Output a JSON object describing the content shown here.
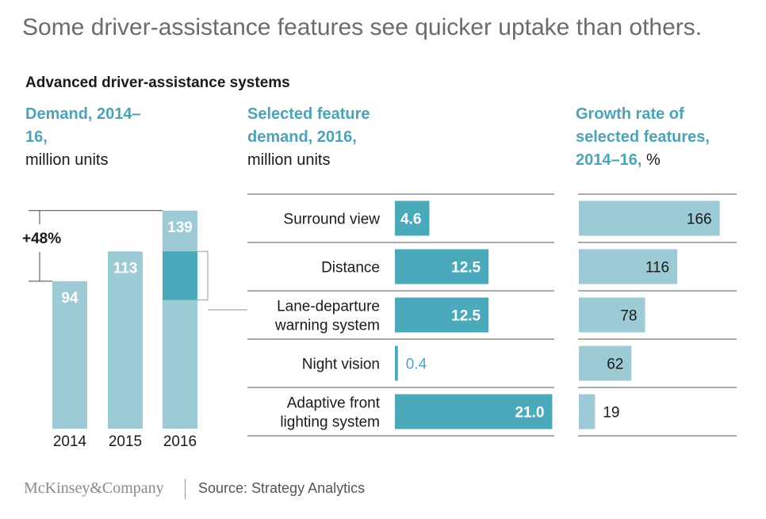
{
  "title": "Some driver-assistance features see quicker uptake than others.",
  "subtitle": "Advanced driver-assistance systems",
  "footer": {
    "brand": "McKinsey&Company",
    "source": "Source: Strategy Analytics"
  },
  "colors": {
    "light_teal": "#9ccad5",
    "teal": "#4aa9bb",
    "heading_teal": "#4ba3b5",
    "title_gray": "#6b6b6b"
  },
  "chart_data": [
    {
      "type": "bar",
      "heading_bold": "Demand, 2014–16,",
      "heading_unit": "million units",
      "categories": [
        "2014",
        "2015",
        "2016"
      ],
      "values": [
        94,
        113,
        139
      ],
      "highlight_segment": {
        "category": "2016",
        "from": 82,
        "to": 113
      },
      "annotation": "+48%"
    },
    {
      "type": "bar",
      "orientation": "horizontal",
      "heading_bold": "Selected feature demand, 2016,",
      "heading_unit": "million units",
      "categories": [
        "Surround view",
        "Distance",
        "Lane-departure warning system",
        "Night vision",
        "Adaptive front lighting system"
      ],
      "values": [
        4.6,
        12.5,
        12.5,
        0.4,
        21.0
      ],
      "value_labels": [
        "4.6",
        "12.5",
        "12.5",
        "0.4",
        "21.0"
      ]
    },
    {
      "type": "bar",
      "orientation": "horizontal",
      "heading_bold": "Growth rate of selected features, 2014–16,",
      "heading_unit": "%",
      "categories": [
        "Surround view",
        "Distance",
        "Lane-departure warning system",
        "Night vision",
        "Adaptive front lighting system"
      ],
      "values": [
        166,
        116,
        78,
        62,
        19
      ]
    }
  ]
}
